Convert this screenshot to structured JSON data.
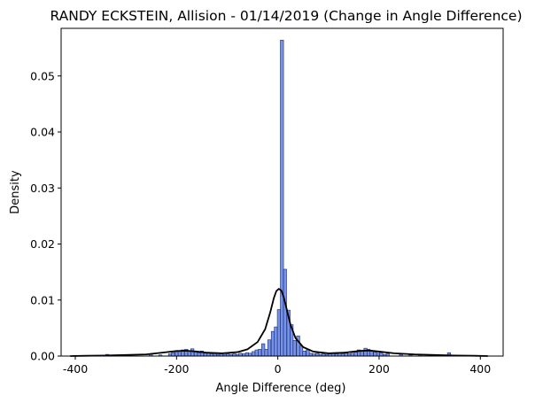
{
  "chart_data": {
    "type": "bar",
    "title": "RANDY ECKSTEIN, Allision - 01/14/2019 (Change in Angle Difference)",
    "xlabel": "Angle Difference (deg)",
    "ylabel": "Density",
    "xlim": [
      -428,
      445
    ],
    "ylim": [
      0,
      0.0585
    ],
    "x_ticks": [
      -400,
      -200,
      0,
      200,
      400
    ],
    "y_ticks": [
      0.0,
      0.01,
      0.02,
      0.03,
      0.04,
      0.05
    ],
    "y_tick_labels": [
      "0.00",
      "0.01",
      "0.02",
      "0.03",
      "0.04",
      "0.05"
    ],
    "grid": false,
    "bin_width": 6.3,
    "series": [
      {
        "kind": "histogram",
        "color": "#4169e1",
        "bins": [
          {
            "x0": -340,
            "value": 0.0003
          },
          {
            "x0": -254,
            "value": 0.0004
          },
          {
            "x0": -235,
            "value": 0.0002
          },
          {
            "x0": -216,
            "value": 0.0004
          },
          {
            "x0": -210,
            "value": 0.0006
          },
          {
            "x0": -203,
            "value": 0.0008
          },
          {
            "x0": -197,
            "value": 0.0009
          },
          {
            "x0": -191,
            "value": 0.0011
          },
          {
            "x0": -184,
            "value": 0.0012
          },
          {
            "x0": -178,
            "value": 0.0009
          },
          {
            "x0": -172,
            "value": 0.0013
          },
          {
            "x0": -165,
            "value": 0.0008
          },
          {
            "x0": -159,
            "value": 0.0006
          },
          {
            "x0": -153,
            "value": 0.0009
          },
          {
            "x0": -146,
            "value": 0.0005
          },
          {
            "x0": -140,
            "value": 0.0006
          },
          {
            "x0": -134,
            "value": 0.0004
          },
          {
            "x0": -127,
            "value": 0.0005
          },
          {
            "x0": -121,
            "value": 0.0003
          },
          {
            "x0": -115,
            "value": 0.0004
          },
          {
            "x0": -108,
            "value": 0.0003
          },
          {
            "x0": -102,
            "value": 0.0004
          },
          {
            "x0": -96,
            "value": 0.0003
          },
          {
            "x0": -89,
            "value": 0.0004
          },
          {
            "x0": -83,
            "value": 0.0003
          },
          {
            "x0": -77,
            "value": 0.0005
          },
          {
            "x0": -70,
            "value": 0.0004
          },
          {
            "x0": -64,
            "value": 0.0006
          },
          {
            "x0": -58,
            "value": 0.0005
          },
          {
            "x0": -51,
            "value": 0.0008
          },
          {
            "x0": -45,
            "value": 0.0011
          },
          {
            "x0": -39,
            "value": 0.0012
          },
          {
            "x0": -32,
            "value": 0.0022
          },
          {
            "x0": -26,
            "value": 0.0012
          },
          {
            "x0": -20,
            "value": 0.0029
          },
          {
            "x0": -13,
            "value": 0.0044
          },
          {
            "x0": -7,
            "value": 0.0052
          },
          {
            "x0": -1,
            "value": 0.0083
          },
          {
            "x0": 5,
            "value": 0.0564
          },
          {
            "x0": 11,
            "value": 0.0155
          },
          {
            "x0": 18,
            "value": 0.0082
          },
          {
            "x0": 24,
            "value": 0.0056
          },
          {
            "x0": 30,
            "value": 0.0028
          },
          {
            "x0": 37,
            "value": 0.0036
          },
          {
            "x0": 43,
            "value": 0.0018
          },
          {
            "x0": 49,
            "value": 0.0009
          },
          {
            "x0": 56,
            "value": 0.0011
          },
          {
            "x0": 62,
            "value": 0.0005
          },
          {
            "x0": 68,
            "value": 0.0004
          },
          {
            "x0": 75,
            "value": 0.0005
          },
          {
            "x0": 81,
            "value": 0.0003
          },
          {
            "x0": 87,
            "value": 0.0004
          },
          {
            "x0": 94,
            "value": 0.0003
          },
          {
            "x0": 100,
            "value": 0.0004
          },
          {
            "x0": 106,
            "value": 0.0005
          },
          {
            "x0": 113,
            "value": 0.0004
          },
          {
            "x0": 119,
            "value": 0.0006
          },
          {
            "x0": 125,
            "value": 0.0004
          },
          {
            "x0": 132,
            "value": 0.0005
          },
          {
            "x0": 138,
            "value": 0.0004
          },
          {
            "x0": 144,
            "value": 0.0005
          },
          {
            "x0": 151,
            "value": 0.0007
          },
          {
            "x0": 157,
            "value": 0.0011
          },
          {
            "x0": 163,
            "value": 0.0009
          },
          {
            "x0": 170,
            "value": 0.0014
          },
          {
            "x0": 176,
            "value": 0.0012
          },
          {
            "x0": 182,
            "value": 0.0009
          },
          {
            "x0": 189,
            "value": 0.0007
          },
          {
            "x0": 195,
            "value": 0.0005
          },
          {
            "x0": 201,
            "value": 0.0006
          },
          {
            "x0": 208,
            "value": 0.0003
          },
          {
            "x0": 214,
            "value": 0.0004
          },
          {
            "x0": 240,
            "value": 0.0003
          },
          {
            "x0": 259,
            "value": 0.0002
          },
          {
            "x0": 278,
            "value": 0.0002
          },
          {
            "x0": 304,
            "value": 0.0002
          },
          {
            "x0": 335,
            "value": 0.0006
          }
        ]
      },
      {
        "kind": "kde",
        "color": "#000000",
        "points": [
          [
            -410,
            0.0
          ],
          [
            -380,
            5e-05
          ],
          [
            -340,
            0.0001
          ],
          [
            -300,
            0.0002
          ],
          [
            -260,
            0.0003
          ],
          [
            -230,
            0.0006
          ],
          [
            -200,
            0.0009
          ],
          [
            -180,
            0.00095
          ],
          [
            -160,
            0.0008
          ],
          [
            -140,
            0.0006
          ],
          [
            -110,
            0.0005
          ],
          [
            -80,
            0.0007
          ],
          [
            -60,
            0.0012
          ],
          [
            -40,
            0.0025
          ],
          [
            -25,
            0.0048
          ],
          [
            -15,
            0.0078
          ],
          [
            -8,
            0.0103
          ],
          [
            -3,
            0.0116
          ],
          [
            2,
            0.012
          ],
          [
            7,
            0.0117
          ],
          [
            12,
            0.0104
          ],
          [
            18,
            0.0082
          ],
          [
            25,
            0.0056
          ],
          [
            35,
            0.0032
          ],
          [
            50,
            0.0016
          ],
          [
            70,
            0.0008
          ],
          [
            100,
            0.0005
          ],
          [
            130,
            0.0006
          ],
          [
            160,
            0.0009
          ],
          [
            180,
            0.001
          ],
          [
            200,
            0.0008
          ],
          [
            230,
            0.0005
          ],
          [
            270,
            0.0003
          ],
          [
            310,
            0.0002
          ],
          [
            350,
            0.0001
          ],
          [
            390,
            5e-05
          ],
          [
            415,
            0.0
          ]
        ]
      }
    ]
  }
}
